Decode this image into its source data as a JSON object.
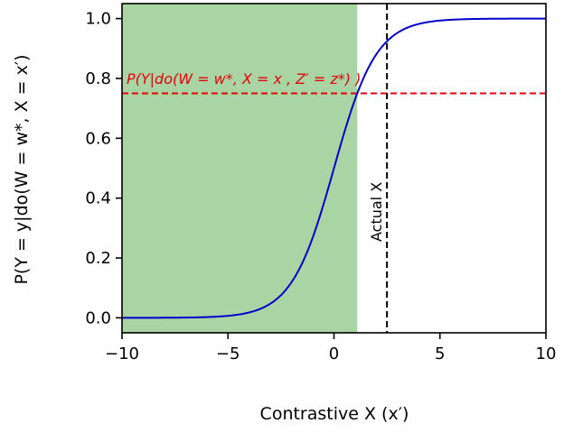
{
  "chart_data": {
    "type": "line",
    "xlabel": "Contrastive X (x′)",
    "ylabel": "P(Y = y|do(W = w*, X = x′)",
    "xlim": [
      -10,
      10
    ],
    "ylim": [
      -0.05,
      1.05
    ],
    "xticks": [
      -10,
      -5,
      0,
      5,
      10
    ],
    "xtick_labels": [
      "−10",
      "−5",
      "0",
      "5",
      "10"
    ],
    "yticks": [
      0.0,
      0.2,
      0.4,
      0.6,
      0.8,
      1.0
    ],
    "ytick_labels": [
      "0.0",
      "0.2",
      "0.4",
      "0.6",
      "0.8",
      "1.0"
    ],
    "grid": false,
    "shaded_region": {
      "x_from": -10,
      "x_to": 1.1,
      "color": "#a9d5a4"
    },
    "series": [
      {
        "curve": "logistic",
        "center": 0,
        "steepness": 1.0,
        "color": "#0000cc",
        "x": [
          -10,
          -8,
          -6,
          -4,
          -3,
          -2,
          -1,
          0,
          1,
          2,
          3,
          4,
          6,
          8,
          10
        ],
        "y": [
          0.0,
          0.0003,
          0.0025,
          0.018,
          0.047,
          0.119,
          0.269,
          0.5,
          0.731,
          0.881,
          0.953,
          0.982,
          0.9975,
          0.9997,
          1.0
        ]
      }
    ],
    "hlines": [
      {
        "y": 0.75,
        "color": "#e8000b",
        "style": "dashed",
        "label": "P(Y|do(W = w*, X = x , Z′ = z*) )"
      }
    ],
    "vlines": [
      {
        "x": 2.5,
        "color": "#000000",
        "style": "dashed",
        "label": "Actual X"
      }
    ]
  }
}
